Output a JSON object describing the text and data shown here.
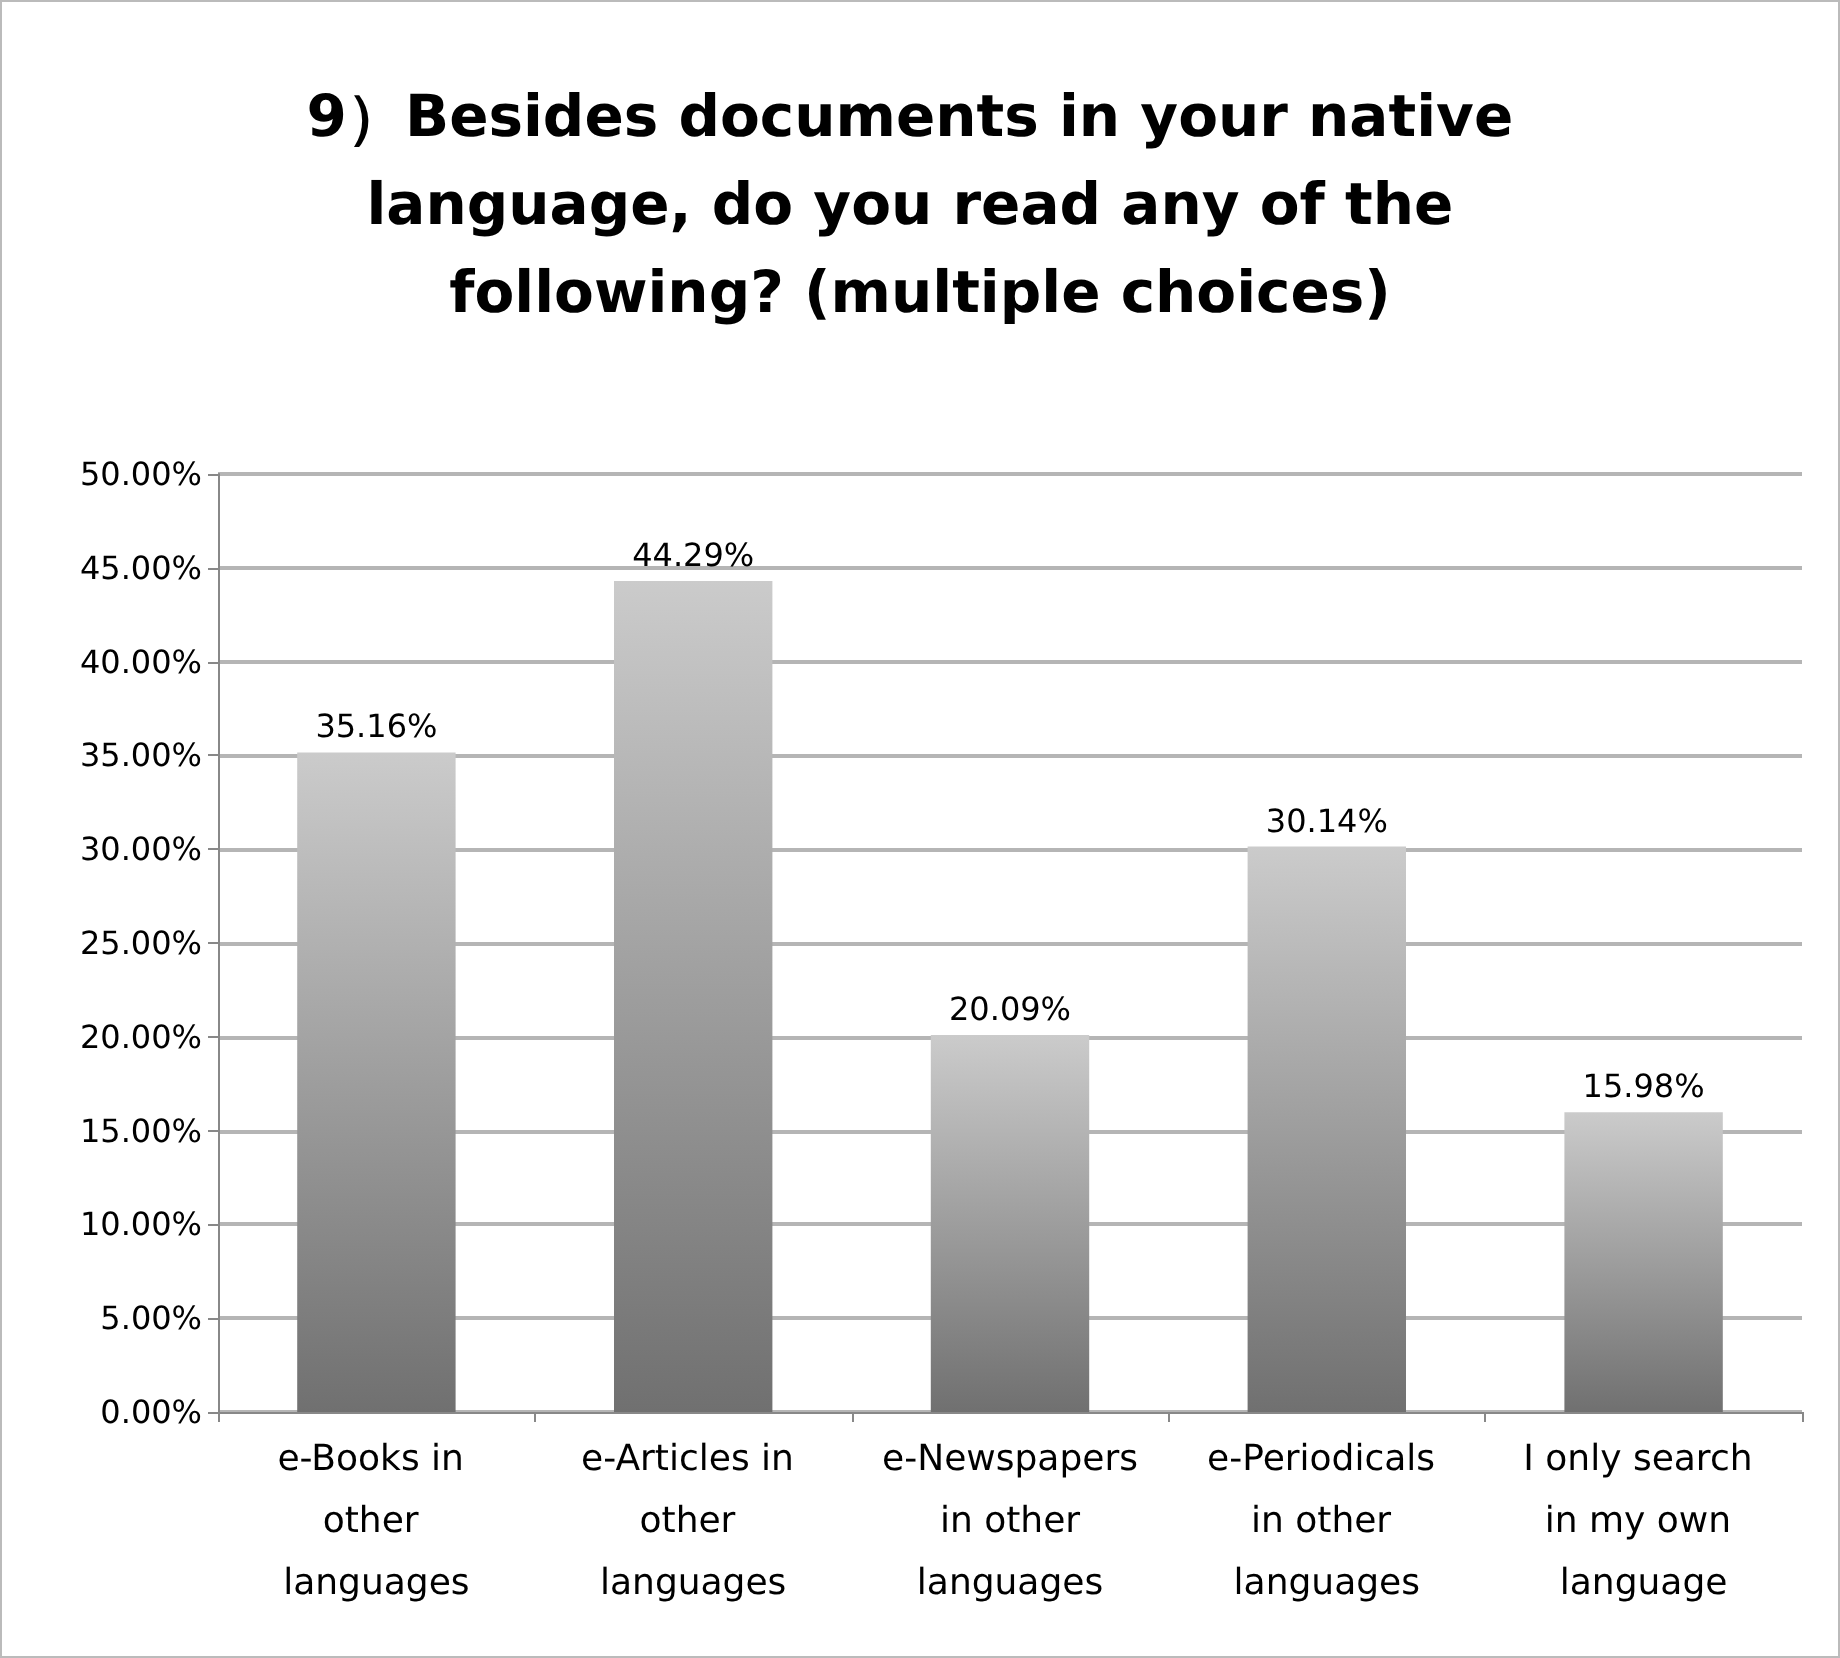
{
  "chart_data": {
    "type": "bar",
    "title": "9）Besides documents in your native language, do you read any of the following? (multiple choices)",
    "categories": [
      "e-Books in other languages",
      "e-Articles in other languages",
      "e-Newspapers in other languages",
      "e-Periodicals in other languages",
      "I only search in my own language"
    ],
    "values": [
      35.16,
      44.29,
      20.09,
      30.14,
      15.98
    ],
    "value_labels": [
      "35.16%",
      "44.29%",
      "20.09%",
      "30.14%",
      "15.98%"
    ],
    "color": "#a0a0a0",
    "ylim": [
      0,
      50
    ],
    "yticks": [
      {
        "value": 0,
        "label": "0.00%"
      },
      {
        "value": 5,
        "label": "5.00%"
      },
      {
        "value": 10,
        "label": "10.00%"
      },
      {
        "value": 15,
        "label": "15.00%"
      },
      {
        "value": 20,
        "label": "20.00%"
      },
      {
        "value": 25,
        "label": "25.00%"
      },
      {
        "value": 30,
        "label": "30.00%"
      },
      {
        "value": 35,
        "label": "35.00%"
      },
      {
        "value": 40,
        "label": "40.00%"
      },
      {
        "value": 45,
        "label": "45.00%"
      },
      {
        "value": 50,
        "label": "50.00%"
      }
    ],
    "grid": "y"
  }
}
